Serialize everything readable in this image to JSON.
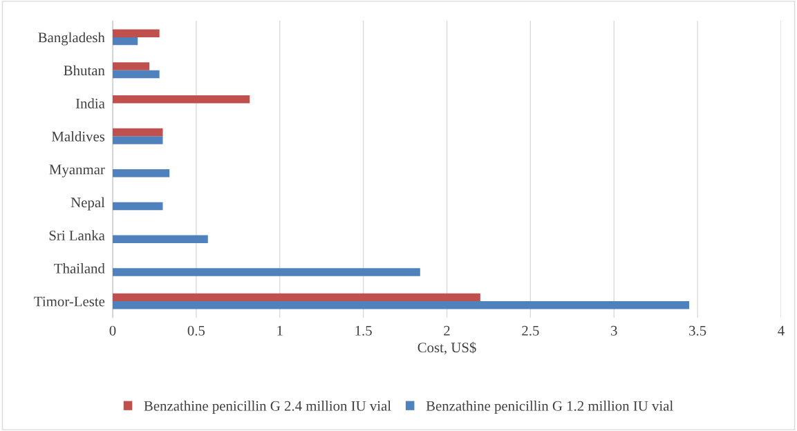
{
  "chart_data": {
    "type": "bar",
    "orientation": "horizontal",
    "xlabel": "Cost, US$",
    "categories": [
      "Bangladesh",
      "Bhutan",
      "India",
      "Maldives",
      "Myanmar",
      "Nepal",
      "Sri Lanka",
      "Thailand",
      "Timor-Leste"
    ],
    "series": [
      {
        "name": "Benzathine penicillin G 2.4 million IU vial",
        "color": "#c0504d",
        "values": [
          0.28,
          0.22,
          0.82,
          0.3,
          null,
          null,
          null,
          null,
          2.2
        ]
      },
      {
        "name": "Benzathine penicillin G 1.2 million IU vial",
        "color": "#4f81bd",
        "values": [
          0.15,
          0.28,
          null,
          0.3,
          0.34,
          0.3,
          0.57,
          1.84,
          3.45
        ]
      }
    ],
    "xlim": [
      0,
      4
    ],
    "xticks": [
      0,
      {
        "value": 0.5,
        "label": "0.5"
      },
      1,
      {
        "value": 1.5,
        "label": "1.5"
      },
      2,
      {
        "value": 2.5,
        "label": "2.5"
      },
      3,
      {
        "value": 3.5,
        "label": "3.5"
      },
      4
    ],
    "grid": "x",
    "legend": "bottom"
  }
}
